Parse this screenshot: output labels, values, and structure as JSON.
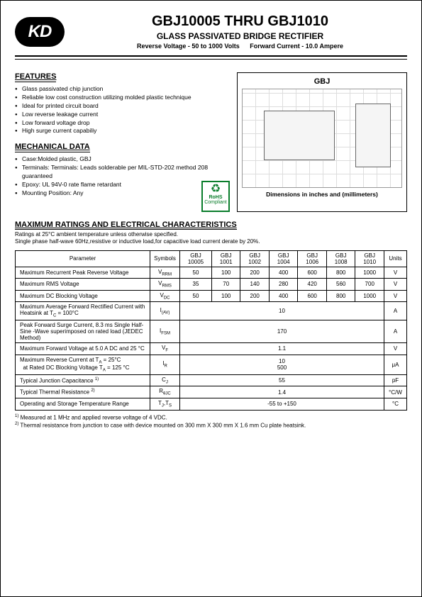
{
  "header": {
    "logo_text": "KD",
    "title": "GBJ10005  THRU  GBJ1010",
    "subtitle": "GLASS PASSIVATED BRIDGE RECTIFIER",
    "spec1": "Reverse Voltage - 50 to 1000 Volts",
    "spec2": "Forward Current - 10.0 Ampere"
  },
  "features": {
    "heading": "FEATURES",
    "items": [
      "Glass passivated chip junction",
      "Reliable low cost construction utilizing molded plastic technique",
      "Ideal for printed circuit board",
      "Low reverse leakage current",
      "Low forward voltage drop",
      "High surge current capabiliy"
    ]
  },
  "mech": {
    "heading": "MECHANICAL DATA",
    "items": [
      "Case:Molded plastic, GBJ",
      "Terminals: Terminals: Leads solderable per MIL-STD-202 method 208 guaranteed",
      "Epoxy: UL 94V-0 rate flame retardant",
      "Mounting Position: Any"
    ]
  },
  "package": {
    "label": "GBJ",
    "caption": "Dimensions in inches and (millimeters)"
  },
  "rohs": {
    "top": "RoHS",
    "bottom": "Compliant"
  },
  "ratings": {
    "heading": "MAXIMUM RATINGS AND ELECTRICAL CHARACTERISTICS",
    "note1": "Ratings at 25°C ambient temperature unless otherwise specified.",
    "note2": "Single phase half-wave 60Hz,resistive or inductive load,for capacitive load current derate by 20%.",
    "columns": [
      "Parameter",
      "Symbols",
      "GBJ 10005",
      "GBJ 1001",
      "GBJ 1002",
      "GBJ 1004",
      "GBJ 1006",
      "GBJ 1008",
      "GBJ 1010",
      "Units"
    ],
    "rows": [
      {
        "param": "Maximum Recurrent Peak Reverse Voltage",
        "symbol": "V<sub>RRM</sub>",
        "vals": [
          "50",
          "100",
          "200",
          "400",
          "600",
          "800",
          "1000"
        ],
        "unit": "V"
      },
      {
        "param": "Maximum RMS Voltage",
        "symbol": "V<sub>RMS</sub>",
        "vals": [
          "35",
          "70",
          "140",
          "280",
          "420",
          "560",
          "700"
        ],
        "unit": "V"
      },
      {
        "param": "Maximum DC Blocking Voltage",
        "symbol": "V<sub>DC</sub>",
        "vals": [
          "50",
          "100",
          "200",
          "400",
          "600",
          "800",
          "1000"
        ],
        "unit": "V"
      },
      {
        "param": "Maximum Average Forward Rectified Current with Heatsink at T<sub>C</sub> = 100°C",
        "symbol": "I<sub>(AV)</sub>",
        "span": "10",
        "unit": "A"
      },
      {
        "param": "Peak Forward Surge Current, 8.3 ms Single Half-Sine -Wave superimposed on rated load (JEDEC Method)",
        "symbol": "I<sub>FSM</sub>",
        "span": "170",
        "unit": "A"
      },
      {
        "param": "Maximum Forward Voltage at 5.0 A DC and 25 °C",
        "symbol": "V<sub>F</sub>",
        "span": "1.1",
        "unit": "V"
      },
      {
        "param": "Maximum Reverse Current at T<sub>A</sub> = 25°C<br>&nbsp;&nbsp;at Rated DC Blocking Voltage T<sub>A</sub> = 125 °C",
        "symbol": "I<sub>R</sub>",
        "span": "10<br>500",
        "unit": "μA"
      },
      {
        "param": "Typical Junction Capacitance <sup>1)</sup>",
        "symbol": "C<sub>J</sub>",
        "span": "55",
        "unit": "pF"
      },
      {
        "param": "Typical Thermal Resistance <sup>2)</sup>",
        "symbol": "R<sub>θJC</sub>",
        "span": "1.4",
        "unit": "°C/W"
      },
      {
        "param": "Operating and Storage Temperature Range",
        "symbol": "T<sub>J</sub>,T<sub>S</sub>",
        "span": "-55 to +150",
        "unit": "°C"
      }
    ],
    "foot1": "1) Measured at 1 MHz and applied reverse voltage of 4 VDC.",
    "foot2": "2) Thermal resistance from junction to case with device mounted on 300 mm X 300 mm X 1.6 mm Cu plate heatsink."
  }
}
